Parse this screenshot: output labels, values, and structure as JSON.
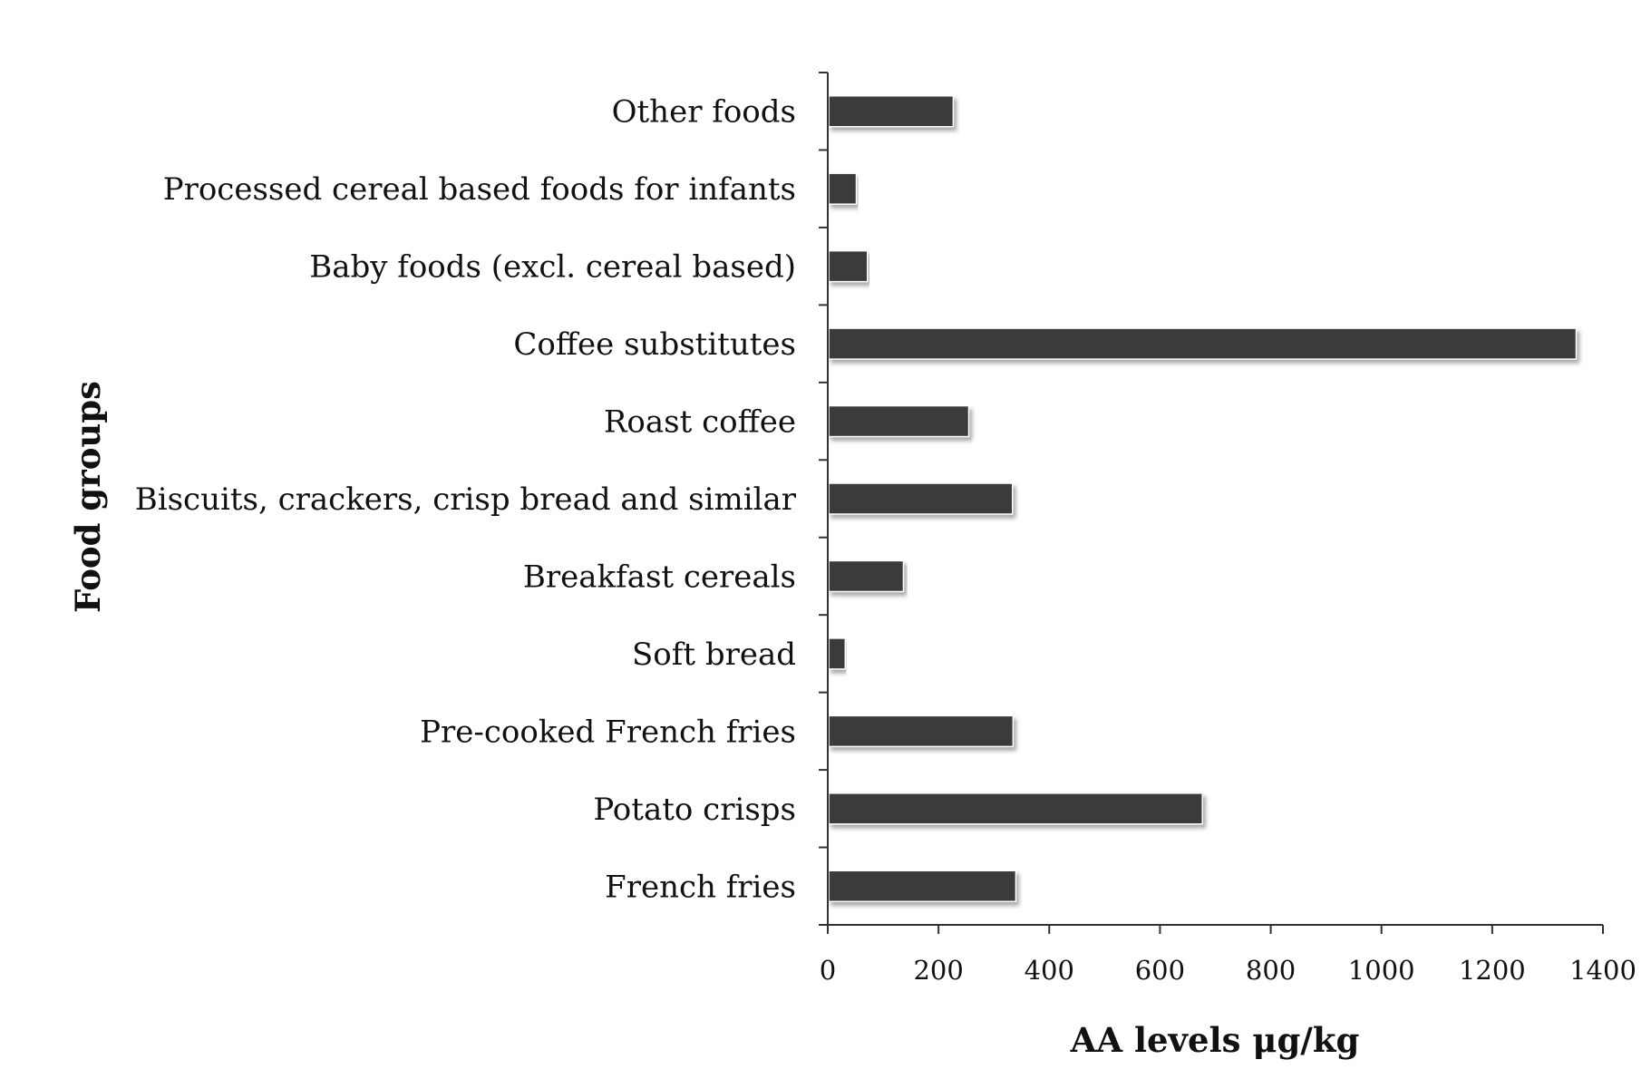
{
  "chart_data": {
    "type": "bar",
    "orientation": "horizontal",
    "title": "",
    "xlabel": "AA levels μg/kg",
    "ylabel": "Food groups",
    "xlim": [
      0,
      1400
    ],
    "xticks": [
      0,
      200,
      400,
      600,
      800,
      1000,
      1200,
      1400
    ],
    "xtick_labels": [
      "0",
      "200",
      "400",
      "600",
      "800",
      "1000",
      "1200",
      "1400"
    ],
    "grid": false,
    "legend": "none",
    "categories": [
      "French fries",
      "Potato crisps",
      "Pre-cooked French fries",
      "Soft bread",
      "Breakfast cereals",
      "Biscuits, crackers, crisp bread and similar",
      "Roast coffee",
      "Coffee substitutes",
      "Baby foods (excl. cereal based)",
      "Processed cereal based foods for infants",
      "Other foods"
    ],
    "values": [
      338,
      675,
      333,
      30,
      135,
      332,
      253,
      1350,
      70,
      50,
      225
    ],
    "colors": {
      "bar": "#3a3a3a",
      "bar_shadow": "#b8b8b8",
      "axis": "#333333",
      "text": "#111111"
    }
  }
}
